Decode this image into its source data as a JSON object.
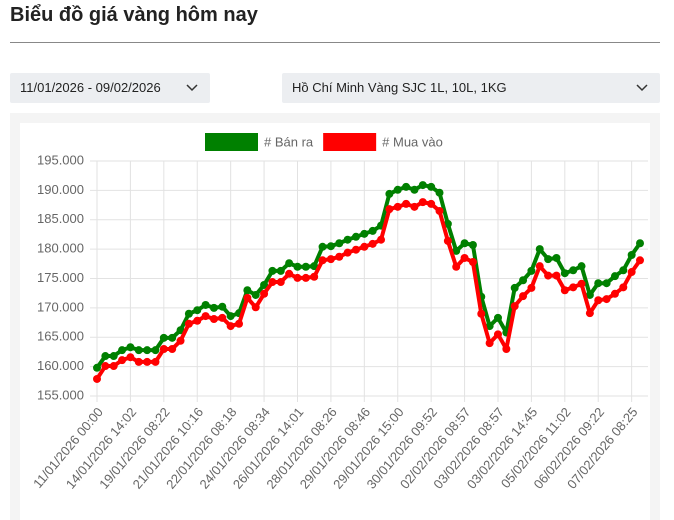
{
  "header": {
    "title": "Biểu đồ giá vàng hôm nay"
  },
  "filters": {
    "date_range": "11/01/2026 - 09/02/2026",
    "product": "Hồ Chí Minh Vàng SJC 1L, 10L, 1KG"
  },
  "chart_data": {
    "type": "line",
    "grid": true,
    "legend": "top",
    "categories": [
      "11/01/2026 00:00",
      null,
      null,
      null,
      "14/01/2026 14:02",
      null,
      null,
      null,
      "19/01/2026 08:22",
      null,
      null,
      null,
      "21/01/2026 10:16",
      null,
      null,
      null,
      "22/01/2026 08:18",
      null,
      null,
      null,
      "24/01/2026 08:34",
      null,
      null,
      null,
      "26/01/2026 14:01",
      null,
      null,
      null,
      "28/01/2026 08:26",
      null,
      null,
      null,
      "29/01/2026 08:46",
      null,
      null,
      null,
      "29/01/2026 15:00",
      null,
      null,
      null,
      "30/01/2026 09:52",
      null,
      null,
      null,
      "02/02/2026 08:57",
      null,
      null,
      null,
      "03/02/2026 08:57",
      null,
      null,
      null,
      "03/02/2026 14:45",
      null,
      null,
      null,
      "05/02/2026 11:02",
      null,
      null,
      null,
      "06/02/2026 09:22",
      null,
      null,
      null,
      "07/02/2026 08:25",
      null
    ],
    "series": [
      {
        "name": "# Bán ra",
        "color": "#008000",
        "values": [
          159800,
          161800,
          161800,
          162800,
          163300,
          162800,
          162800,
          162800,
          164900,
          164900,
          166200,
          169000,
          169600,
          170500,
          170000,
          170200,
          168600,
          169100,
          173000,
          172200,
          173900,
          176300,
          176300,
          177600,
          177000,
          177000,
          177100,
          180400,
          180500,
          181000,
          181600,
          182100,
          182600,
          183100,
          184000,
          189400,
          190100,
          190600,
          190100,
          190900,
          190600,
          189600,
          184300,
          179700,
          181000,
          180700,
          171900,
          166900,
          168300,
          165800,
          173400,
          174700,
          176300,
          180000,
          178300,
          178500,
          175900,
          176400,
          177100,
          172200,
          174200,
          174200,
          175400,
          176400,
          179000,
          181000
        ]
      },
      {
        "name": "# Mua vào",
        "color": "#ff0000",
        "values": [
          157900,
          160100,
          160100,
          161100,
          161600,
          160800,
          160800,
          160800,
          163000,
          163000,
          164400,
          167300,
          167800,
          168600,
          168100,
          168300,
          166900,
          167300,
          171700,
          170100,
          172400,
          174400,
          174400,
          175800,
          175100,
          175100,
          175300,
          178100,
          178300,
          178700,
          179400,
          179900,
          180400,
          180900,
          181600,
          186800,
          187200,
          187700,
          187200,
          188000,
          187700,
          186500,
          181400,
          177000,
          178500,
          177800,
          169000,
          164000,
          165500,
          163000,
          170300,
          172000,
          173400,
          177100,
          175500,
          175500,
          173000,
          173500,
          174100,
          169100,
          171300,
          171500,
          172400,
          173500,
          176100,
          178100
        ]
      }
    ],
    "ylim": [
      155000,
      195000
    ],
    "yticks": [
      {
        "value": 155000,
        "label": "155.000"
      },
      {
        "value": 160000,
        "label": "160.000"
      },
      {
        "value": 165000,
        "label": "165.000"
      },
      {
        "value": 170000,
        "label": "170.000"
      },
      {
        "value": 175000,
        "label": "175.000"
      },
      {
        "value": 180000,
        "label": "180.000"
      },
      {
        "value": 185000,
        "label": "185.000"
      },
      {
        "value": 190000,
        "label": "190.000"
      },
      {
        "value": 195000,
        "label": "195.000"
      }
    ]
  }
}
